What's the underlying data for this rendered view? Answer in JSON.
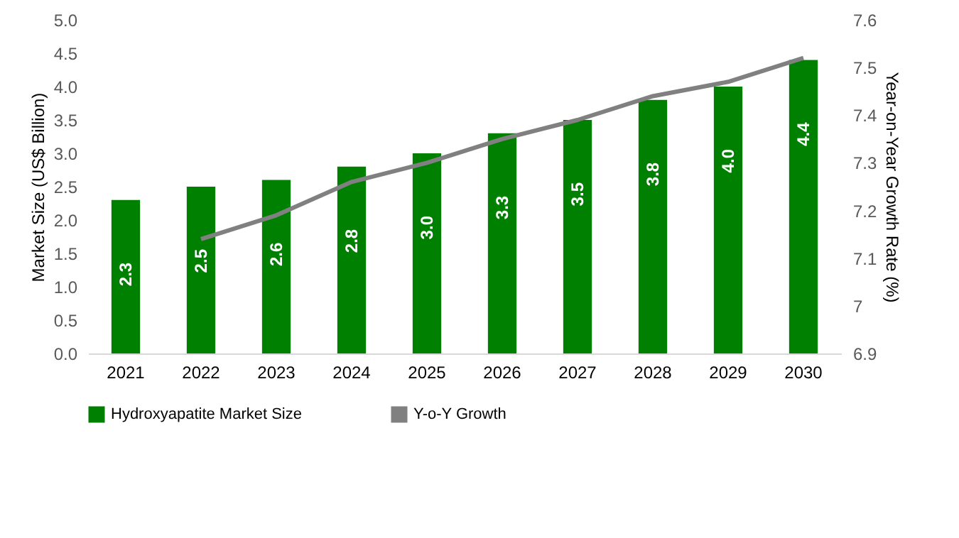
{
  "chart_data": {
    "type": "bar",
    "categories": [
      "2021",
      "2022",
      "2023",
      "2024",
      "2025",
      "2026",
      "2027",
      "2028",
      "2029",
      "2030"
    ],
    "ylabel": "Market Size (US$ Billion)",
    "y2label": "Year-on-Year  Growth Rate (%)",
    "ylim": [
      0,
      5
    ],
    "yticks": [
      {
        "value": 0,
        "label": "0.0"
      },
      0.5,
      {
        "value": 1,
        "label": "1.0"
      },
      1.5,
      {
        "value": 2,
        "label": "2.0"
      },
      2.5,
      {
        "value": 3,
        "label": "3.0"
      },
      3.5,
      {
        "value": 4,
        "label": "4.0"
      },
      4.5,
      {
        "value": 5,
        "label": "5.0"
      }
    ],
    "y2lim": [
      6.9,
      7.6
    ],
    "y2ticks": [
      6.9,
      7,
      7.1,
      7.2,
      7.3,
      7.4,
      7.5,
      7.6
    ],
    "legend": "bottom",
    "grid": false,
    "series": [
      {
        "name": "Hydroxyapatite Market Size",
        "color": "#008000",
        "values": [
          2.3,
          2.5,
          2.6,
          2.8,
          3.0,
          3.3,
          3.5,
          3.8,
          4.0,
          4.4
        ],
        "value_labels": [
          "2.3",
          "2.5",
          "2.6",
          "2.8",
          "3.0",
          "3.3",
          "3.5",
          "3.8",
          "4.0",
          "4.4"
        ]
      },
      {
        "name": "Y-o-Y Growth",
        "type": "line",
        "axis": "y2",
        "color": "#808080",
        "values": [
          null,
          7.14,
          7.19,
          7.26,
          7.3,
          7.35,
          7.39,
          7.44,
          7.47,
          7.52
        ]
      }
    ]
  }
}
